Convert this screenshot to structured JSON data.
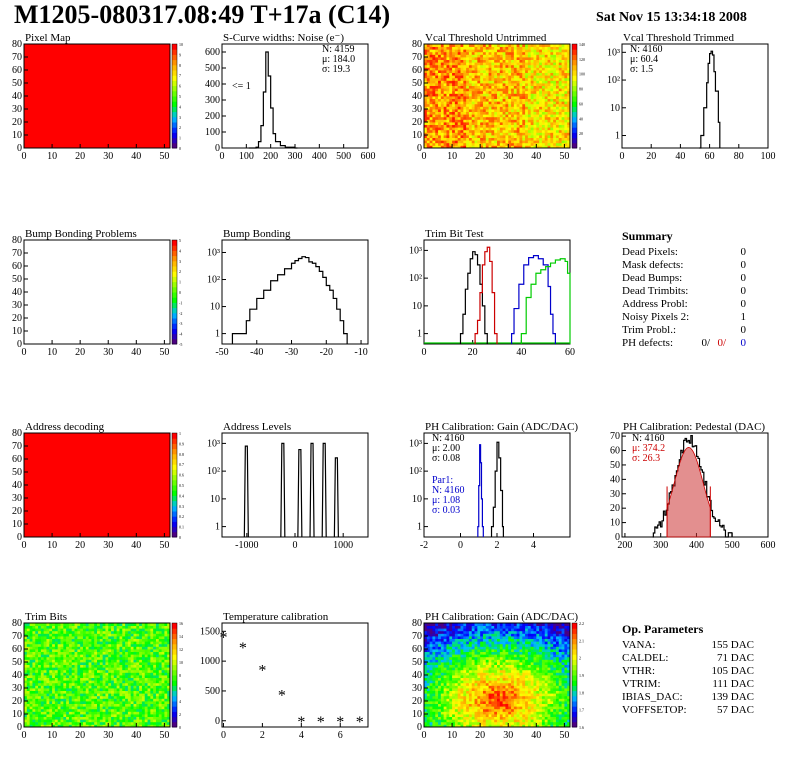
{
  "header": {
    "title": "M1205-080317.08:49 T+17a (C14)",
    "date": "Sat Nov 15 13:34:18 2008"
  },
  "colors": {
    "map_red": "#ff0000",
    "hist_line": "#000000",
    "blue": "#0000cc",
    "red": "#cc0000",
    "green": "#00cc00",
    "pedestal_fill": "#cc3333"
  },
  "panels": [
    {
      "key": "pixel_map",
      "title": "Pixel Map",
      "type": "heatmap",
      "x_ticks": [
        "0",
        "10",
        "20",
        "30",
        "40",
        "50"
      ],
      "y_ticks": [
        "0",
        "10",
        "20",
        "30",
        "40",
        "50",
        "60",
        "70",
        "80"
      ],
      "z_ticks": [
        "0",
        "1",
        "2",
        "3",
        "4",
        "5",
        "6",
        "7",
        "8",
        "9",
        "10"
      ],
      "fill": "uniform-red"
    },
    {
      "key": "noise",
      "title": "S-Curve widths: Noise (e⁻)",
      "type": "hist",
      "log": false,
      "x_ticks": [
        "0",
        "100",
        "200",
        "300",
        "400",
        "500",
        "600"
      ],
      "y_ticks": [
        "0",
        "100",
        "200",
        "300",
        "400",
        "500",
        "600"
      ],
      "stats": [
        "N: 4159",
        "μ: 184.0",
        "σ: 19.3"
      ],
      "annotation": "<= 1"
    },
    {
      "key": "vcal_untrimmed",
      "title": "Vcal Threshold Untrimmed",
      "type": "heatmap",
      "x_ticks": [
        "0",
        "10",
        "20",
        "30",
        "40",
        "50"
      ],
      "y_ticks": [
        "0",
        "10",
        "20",
        "30",
        "40",
        "50",
        "60",
        "70",
        "80"
      ],
      "z_ticks": [
        "0",
        "20",
        "40",
        "60",
        "80",
        "100",
        "120",
        "140"
      ],
      "fill": "noise-yellow"
    },
    {
      "key": "vcal_trimmed",
      "title": "Vcal Threshold Trimmed",
      "type": "hist",
      "log": true,
      "x_ticks": [
        "0",
        "20",
        "40",
        "60",
        "80",
        "100"
      ],
      "y_ticks": [
        "1",
        "10",
        "10²",
        "10³"
      ],
      "stats": [
        "N: 4160",
        "μ: 60.4",
        "σ:  1.5"
      ]
    },
    {
      "key": "bump_problems",
      "title": "Bump Bonding Problems",
      "type": "heatmap",
      "x_ticks": [
        "0",
        "10",
        "20",
        "30",
        "40",
        "50"
      ],
      "y_ticks": [
        "0",
        "10",
        "20",
        "30",
        "40",
        "50",
        "60",
        "70",
        "80"
      ],
      "z_ticks": [
        "-5",
        "-4",
        "-3",
        "-2",
        "-1",
        "0",
        "1",
        "2",
        "3",
        "4",
        "5"
      ],
      "fill": "empty"
    },
    {
      "key": "bump_bonding",
      "title": "Bump Bonding",
      "type": "hist",
      "log": true,
      "x_ticks": [
        "-50",
        "-40",
        "-30",
        "-20",
        "-10"
      ],
      "y_ticks": [
        "1",
        "10",
        "10²",
        "10³"
      ]
    },
    {
      "key": "trim_bit_test",
      "title": "Trim Bit Test",
      "type": "hist",
      "log": true,
      "x_ticks": [
        "0",
        "20",
        "40",
        "60"
      ],
      "y_ticks": [
        "1",
        "10",
        "10²",
        "10³"
      ]
    },
    {
      "key": "summary",
      "title": "Summary",
      "type": "table"
    },
    {
      "key": "address_decoding",
      "title": "Address decoding",
      "type": "heatmap",
      "x_ticks": [
        "0",
        "10",
        "20",
        "30",
        "40",
        "50"
      ],
      "y_ticks": [
        "0",
        "10",
        "20",
        "30",
        "40",
        "50",
        "60",
        "70",
        "80"
      ],
      "z_ticks": [
        "0",
        "0.1",
        "0.2",
        "0.3",
        "0.4",
        "0.5",
        "0.6",
        "0.7",
        "0.8",
        "0.9",
        "1"
      ],
      "fill": "uniform-red"
    },
    {
      "key": "address_levels",
      "title": "Address Levels",
      "type": "hist",
      "log": true,
      "x_ticks": [
        "-1000",
        "0",
        "1000"
      ],
      "y_ticks": [
        "1",
        "10",
        "10²",
        "10³"
      ]
    },
    {
      "key": "ph_gain",
      "title": "PH Calibration: Gain (ADC/DAC)",
      "type": "hist",
      "log": true,
      "x_ticks": [
        "-2",
        "0",
        "2",
        "4"
      ],
      "y_ticks": [
        "1",
        "10",
        "10²",
        "10³"
      ],
      "stats": [
        "N: 4160",
        "μ: 2.00",
        "σ: 0.08"
      ],
      "stats2": [
        "Par1:",
        "N: 4160",
        "μ: 1.08",
        "σ: 0.03"
      ]
    },
    {
      "key": "ph_pedestal",
      "title": "PH Calibration: Pedestal (DAC)",
      "type": "hist",
      "log": false,
      "x_ticks": [
        "200",
        "300",
        "400",
        "500",
        "600"
      ],
      "y_ticks": [
        "0",
        "10",
        "20",
        "30",
        "40",
        "50",
        "60",
        "70"
      ],
      "stats": [
        "N: 4160",
        "μ: 374.2",
        "σ: 26.3"
      ]
    },
    {
      "key": "trim_bits",
      "title": "Trim Bits",
      "type": "heatmap",
      "x_ticks": [
        "0",
        "10",
        "20",
        "30",
        "40",
        "50"
      ],
      "y_ticks": [
        "0",
        "10",
        "20",
        "30",
        "40",
        "50",
        "60",
        "70",
        "80"
      ],
      "z_ticks": [
        "0",
        "2",
        "4",
        "6",
        "8",
        "10",
        "12",
        "14",
        "16"
      ],
      "fill": "noise-green"
    },
    {
      "key": "temperature",
      "title": "Temperature calibration",
      "type": "scatter",
      "x_ticks": [
        "0",
        "2",
        "4",
        "6"
      ],
      "y_ticks": [
        "0",
        "500",
        "1000",
        "1500"
      ]
    },
    {
      "key": "ph_gain_map",
      "title": "PH Calibration: Gain (ADC/DAC)",
      "type": "heatmap",
      "x_ticks": [
        "0",
        "10",
        "20",
        "30",
        "40",
        "50"
      ],
      "y_ticks": [
        "0",
        "10",
        "20",
        "30",
        "40",
        "50",
        "60",
        "70",
        "80"
      ],
      "z_ticks": [
        "1.6",
        "1.7",
        "1.8",
        "1.9",
        "2",
        "2.1",
        "2.2"
      ],
      "fill": "noise-gain"
    },
    {
      "key": "op_params",
      "title": "Op. Parameters",
      "type": "table"
    }
  ],
  "summary": {
    "rows": [
      {
        "label": "Dead Pixels:",
        "value": "0"
      },
      {
        "label": "Mask defects:",
        "value": "0"
      },
      {
        "label": "Dead Bumps:",
        "value": "0"
      },
      {
        "label": "Dead Trimbits:",
        "value": "0"
      },
      {
        "label": "Address Probl:",
        "value": "0"
      },
      {
        "label": "Noisy Pixels 2:",
        "value": "1"
      },
      {
        "label": "Trim Probl.:",
        "value": "0"
      }
    ],
    "ph_defects": {
      "label": "PH defects:",
      "v1": "0/",
      "v2": "0/",
      "v3": "0"
    }
  },
  "op_params": {
    "rows": [
      {
        "label": "VANA:",
        "value": "155 DAC"
      },
      {
        "label": "CALDEL:",
        "value": "71 DAC"
      },
      {
        "label": "VTHR:",
        "value": "105 DAC"
      },
      {
        "label": "VTRIM:",
        "value": "111 DAC"
      },
      {
        "label": "IBIAS_DAC:",
        "value": "139 DAC"
      },
      {
        "label": "VOFFSETOP:",
        "value": "57 DAC"
      }
    ]
  },
  "chart_data": [
    {
      "type": "heatmap",
      "title": "Pixel Map",
      "x_range": [
        0,
        52
      ],
      "y_range": [
        0,
        80
      ],
      "z_range": [
        0,
        10
      ],
      "values": "all pixels = 10"
    },
    {
      "type": "bar",
      "title": "S-Curve widths: Noise (e⁻)",
      "x": [
        120,
        140,
        150,
        160,
        170,
        180,
        190,
        200,
        210,
        220,
        240,
        260,
        300
      ],
      "values": [
        0,
        5,
        40,
        140,
        350,
        600,
        450,
        250,
        90,
        40,
        15,
        5,
        0
      ],
      "xlim": [
        0,
        600
      ],
      "ylim": [
        0,
        650
      ]
    },
    {
      "type": "heatmap",
      "title": "Vcal Threshold Untrimmed",
      "x_range": [
        0,
        52
      ],
      "y_range": [
        0,
        80
      ],
      "z_range": [
        0,
        140
      ]
    },
    {
      "type": "bar",
      "title": "Vcal Threshold Trimmed",
      "x": [
        54,
        56,
        58,
        59,
        60,
        61,
        62,
        63,
        64,
        66
      ],
      "values": [
        1,
        10,
        80,
        400,
        900,
        1100,
        800,
        200,
        40,
        3
      ],
      "xlim": [
        0,
        100
      ],
      "log_y": true
    },
    {
      "type": "heatmap",
      "title": "Bump Bonding Problems",
      "x_range": [
        0,
        52
      ],
      "y_range": [
        0,
        80
      ],
      "z_range": [
        -5,
        5
      ],
      "values": "empty"
    },
    {
      "type": "bar",
      "title": "Bump Bonding",
      "x": [
        -45,
        -40,
        -35,
        -30,
        -27,
        -25,
        -20,
        -15
      ],
      "values": [
        1,
        20,
        150,
        500,
        700,
        450,
        60,
        1
      ],
      "xlim": [
        -50,
        -10
      ],
      "log_y": true
    },
    {
      "type": "line",
      "title": "Trim Bit Test",
      "x": [
        15,
        18,
        20,
        22,
        25,
        28,
        35,
        40,
        45,
        50,
        55,
        58,
        60
      ],
      "series": [
        {
          "values": [
            1,
            100,
            1100,
            700,
            80,
            1,
            1,
            1,
            1,
            1,
            1,
            1,
            1
          ]
        },
        {
          "values": [
            1,
            1,
            10,
            300,
            1300,
            200,
            1,
            1,
            1,
            1,
            1,
            1,
            1
          ]
        },
        {
          "values": [
            1,
            1,
            1,
            1,
            1,
            1,
            5,
            200,
            500,
            700,
            100,
            1,
            1
          ]
        },
        {
          "values": [
            1,
            1,
            1,
            1,
            1,
            1,
            1,
            1,
            50,
            200,
            300,
            500,
            150
          ]
        }
      ],
      "xlim": [
        10,
        60
      ],
      "log_y": true
    },
    {
      "type": "heatmap",
      "title": "Address decoding",
      "x_range": [
        0,
        52
      ],
      "y_range": [
        0,
        80
      ],
      "z_range": [
        0,
        1
      ],
      "values": "all pixels = 1"
    },
    {
      "type": "bar",
      "title": "Address Levels",
      "x": [
        -1000,
        -250,
        100,
        350,
        600,
        850
      ],
      "values": [
        800,
        1000,
        600,
        1000,
        1000,
        300
      ],
      "xlim": [
        -1300,
        1300
      ],
      "log_y": true
    },
    {
      "type": "bar",
      "title": "PH Calibration: Gain (ADC/DAC)",
      "x": [
        1.0,
        1.08,
        1.15,
        1.9,
        2.0,
        2.1
      ],
      "series": [
        {
          "name": "Par1",
          "values": [
            300,
            1000,
            80,
            0,
            0,
            0
          ]
        },
        {
          "values": [
            0,
            0,
            0,
            200,
            1200,
            400
          ]
        }
      ],
      "xlim": [
        -2,
        6
      ],
      "log_y": true
    },
    {
      "type": "bar",
      "title": "PH Calibration: Pedestal (DAC)",
      "x": [
        300,
        320,
        340,
        360,
        380,
        400,
        420,
        440,
        460,
        480
      ],
      "values": [
        3,
        12,
        30,
        55,
        70,
        60,
        35,
        15,
        5,
        2
      ],
      "xlim": [
        200,
        600
      ]
    },
    {
      "type": "heatmap",
      "title": "Trim Bits",
      "x_range": [
        0,
        52
      ],
      "y_range": [
        0,
        80
      ],
      "z_range": [
        0,
        16
      ]
    },
    {
      "type": "scatter",
      "title": "Temperature calibration",
      "x": [
        0,
        1,
        2,
        3,
        4,
        5,
        6,
        7
      ],
      "y": [
        1400,
        1220,
        840,
        420,
        -20,
        -20,
        -20,
        -20
      ],
      "xlim": [
        0,
        7.5
      ],
      "ylim": [
        -100,
        1550
      ]
    },
    {
      "type": "heatmap",
      "title": "PH Calibration: Gain (ADC/DAC)",
      "x_range": [
        0,
        52
      ],
      "y_range": [
        0,
        80
      ],
      "z_range": [
        1.6,
        2.2
      ]
    }
  ]
}
